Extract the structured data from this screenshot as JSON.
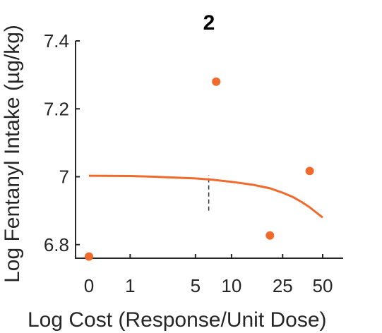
{
  "chart_data": {
    "type": "scatter",
    "title": "2",
    "xlabel": "Log Cost (Response/Unit Dose)",
    "ylabel": "Log Fentanyl Intake (µg/kg)",
    "x_ticks": [
      0,
      1,
      5,
      10,
      25,
      50
    ],
    "y_ticks": [
      6.8,
      7,
      7.2,
      7.4
    ],
    "y_tick_labels": [
      "6.8",
      "7",
      "7.2",
      "7.4"
    ],
    "ylim": [
      6.76,
      7.4
    ],
    "color": "#ef6a2b",
    "series": [
      {
        "points": [
          {
            "x": 0,
            "y": 6.765
          },
          {
            "x": 7.5,
            "y": 7.28
          },
          {
            "x": 20,
            "y": 6.827
          },
          {
            "x": 40,
            "y": 7.017
          }
        ]
      }
    ],
    "fit_curve": {
      "x": [
        0,
        1,
        2,
        3,
        5,
        7,
        10,
        15,
        20,
        25,
        30,
        35,
        40,
        45,
        50
      ],
      "y": [
        7.003,
        7.002,
        7.0,
        6.998,
        6.995,
        6.991,
        6.985,
        6.976,
        6.966,
        6.953,
        6.94,
        6.925,
        6.91,
        6.894,
        6.88
      ]
    },
    "reference_x": 6.5,
    "reference_y_range": [
      6.9,
      7.005
    ]
  }
}
